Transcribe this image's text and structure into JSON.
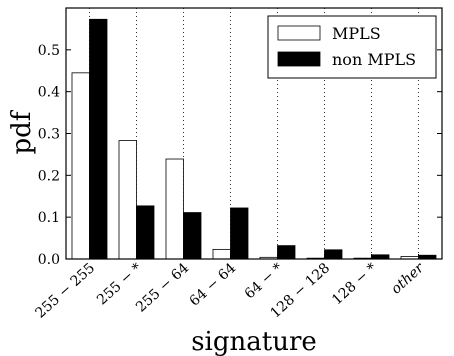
{
  "chart_data": {
    "type": "bar",
    "categories": [
      "255 − 255",
      "255 − *",
      "255 − 64",
      "64 − 64",
      "64 − *",
      "128 − 128",
      "128 − *",
      "other"
    ],
    "series": [
      {
        "name": "MPLS",
        "values": [
          0.445,
          0.283,
          0.239,
          0.023,
          0.004,
          0.002,
          0.002,
          0.006
        ],
        "color": "#ffffff"
      },
      {
        "name": "non MPLS",
        "values": [
          0.573,
          0.127,
          0.111,
          0.122,
          0.032,
          0.022,
          0.01,
          0.009
        ],
        "color": "#000000"
      }
    ],
    "xlabel": "signature",
    "ylabel": "pdf",
    "ylim": [
      0,
      0.6
    ],
    "yticks": [
      "0.0",
      "0.1",
      "0.2",
      "0.3",
      "0.4",
      "0.5"
    ],
    "ytick_values": [
      0.0,
      0.1,
      0.2,
      0.3,
      0.4,
      0.5
    ],
    "legend_position": "top-right",
    "grid": "vertical dotted"
  }
}
